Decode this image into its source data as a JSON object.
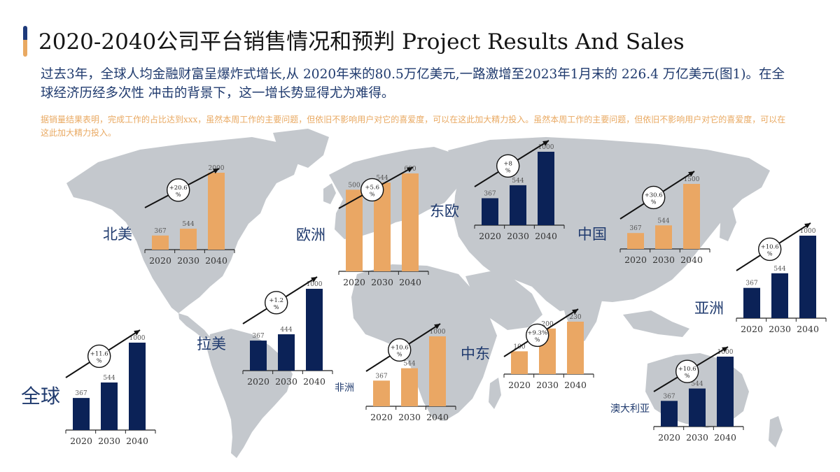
{
  "header": {
    "title": "2020-2040公司平台销售情况和预判 Project Results And Sales",
    "subtitle": "过去3年，全球人均金融财富呈爆炸式增长,从 2020年来的80.5万亿美元,一路激增至2023年1月末的 226.4 万亿美元(图1)。在全球经济历经多次性 冲击的背景下，这一增长势显得尤为难得。",
    "note": "据销量结果表明，完成工作的占比达到xxx，虽然本周工作的主要问题，但依旧不影响用户对它的喜爱度，可以在这此加大精力投入。虽然本周工作的主要问题，但依旧不影响用户对它的喜爱度，可以在这此加大精力投入。"
  },
  "colors": {
    "navy": "#0b2257",
    "orange": "#eaa764",
    "map": "#c4c8cd",
    "accent_bar_top": "#1e3a7a",
    "accent_bar_bottom": "#e9a962"
  },
  "regions": {
    "north_america": "北美",
    "europe": "欧洲",
    "east_europe": "东欧",
    "china": "中国",
    "asia": "亚洲",
    "latin_america": "拉美",
    "africa": "非洲",
    "middle_east": "中东",
    "australia": "澳大利亚",
    "global": "全球"
  },
  "chart_data": [
    {
      "type": "bar",
      "region": "北美",
      "color": "orange",
      "categories": [
        "2020",
        "2030",
        "2040"
      ],
      "values": [
        367,
        544,
        2000
      ],
      "value_labels": [
        "367",
        "544",
        "2000"
      ],
      "growth": "+20.6\n%"
    },
    {
      "type": "bar",
      "region": "欧洲",
      "color": "orange",
      "categories": [
        "2020",
        "2030",
        "2040"
      ],
      "values": [
        500,
        544,
        600
      ],
      "value_labels": [
        "500",
        "544",
        "600"
      ],
      "growth": "+5.6\n%"
    },
    {
      "type": "bar",
      "region": "东欧",
      "color": "navy",
      "categories": [
        "2020",
        "2030",
        "2040"
      ],
      "values": [
        367,
        544,
        1000
      ],
      "value_labels": [
        "367",
        "544",
        "1000"
      ],
      "growth": "+8\n%"
    },
    {
      "type": "bar",
      "region": "中国",
      "color": "orange",
      "categories": [
        "2020",
        "2030",
        "2040"
      ],
      "values": [
        367,
        544,
        1500
      ],
      "value_labels": [
        "367",
        "544",
        "1500"
      ],
      "growth": "+30.6\n%"
    },
    {
      "type": "bar",
      "region": "亚洲",
      "color": "navy",
      "categories": [
        "2020",
        "2030",
        "2040"
      ],
      "values": [
        367,
        544,
        1000
      ],
      "value_labels": [
        "367",
        "544",
        "1000"
      ],
      "growth": "+10.6\n%"
    },
    {
      "type": "bar",
      "region": "拉美",
      "color": "navy",
      "categories": [
        "2020",
        "2030",
        "2040"
      ],
      "values": [
        367,
        444,
        1000
      ],
      "value_labels": [
        "367",
        "444",
        "1000"
      ],
      "growth": "+1.2\n%"
    },
    {
      "type": "bar",
      "region": "非洲",
      "color": "orange",
      "categories": [
        "2020",
        "2030",
        "2040"
      ],
      "values": [
        367,
        544,
        1000
      ],
      "value_labels": [
        "367",
        "544",
        "1000"
      ],
      "growth": "+10.6\n%"
    },
    {
      "type": "bar",
      "region": "中东",
      "color": "orange",
      "categories": [
        "2020",
        "2030",
        "2040"
      ],
      "values": [
        100,
        200,
        230
      ],
      "value_labels": [
        "100",
        "200",
        "230"
      ],
      "growth": "+9.3%\n%"
    },
    {
      "type": "bar",
      "region": "澳大利亚",
      "color": "navy",
      "categories": [
        "2020",
        "2030",
        "2040"
      ],
      "values": [
        367,
        544,
        1000
      ],
      "value_labels": [
        "367",
        "544",
        "1000"
      ],
      "growth": "+10.6\n%"
    },
    {
      "type": "bar",
      "region": "全球",
      "color": "navy",
      "categories": [
        "2020",
        "2030",
        "2040"
      ],
      "values": [
        367,
        544,
        1000
      ],
      "value_labels": [
        "367",
        "544",
        "1000"
      ],
      "growth": "+11.6\n%"
    }
  ]
}
